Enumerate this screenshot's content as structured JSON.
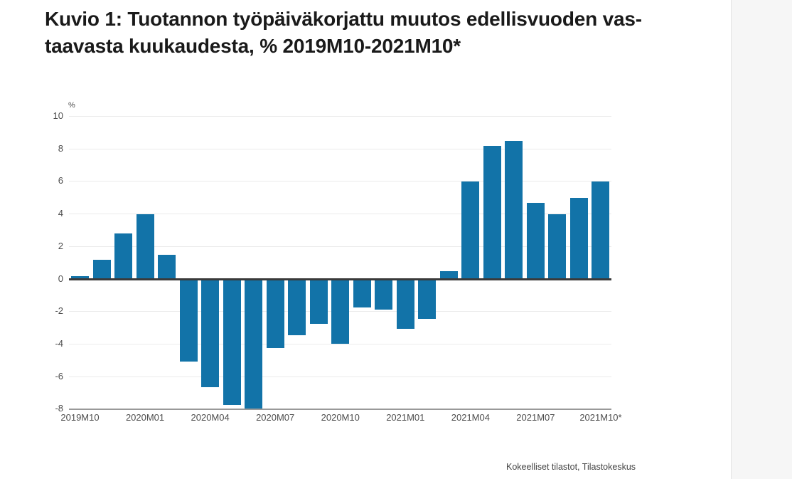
{
  "title": {
    "line1": "Kuvio 1: Tuotannon työpäiväkorjattu muutos edellisvuoden vas-",
    "line2": "taavasta kuukaudesta, % 2019M10-2021M10*"
  },
  "footer": {
    "source_label": "Kokeelliset tilastot, Tilastokeskus"
  },
  "chart_data": {
    "type": "bar",
    "title": "Kuvio 1: Tuotannon työpäiväkorjattu muutos edellisvuoden vastaavasta kuukaudesta, % 2019M10-2021M10*",
    "ylabel": "%",
    "xlabel": "",
    "ylim": [
      -8,
      10
    ],
    "ytick_step": 2,
    "yticks": [
      10,
      8,
      6,
      4,
      2,
      0,
      -2,
      -4,
      -6,
      -8
    ],
    "grid": "horizontal",
    "legend_position": "none",
    "bar_color": "#1273a8",
    "categories": [
      "2019M10",
      "2019M11",
      "2019M12",
      "2020M01",
      "2020M02",
      "2020M03",
      "2020M04",
      "2020M05",
      "2020M06",
      "2020M07",
      "2020M08",
      "2020M09",
      "2020M10",
      "2020M11",
      "2020M12",
      "2021M01",
      "2021M02",
      "2021M03",
      "2021M04",
      "2021M05",
      "2021M06",
      "2021M07",
      "2021M08",
      "2021M09",
      "2021M10"
    ],
    "values": [
      0.2,
      1.2,
      2.8,
      4.0,
      1.5,
      -5.0,
      -6.6,
      -7.7,
      -7.9,
      -4.2,
      -3.4,
      -2.7,
      -3.9,
      -1.7,
      -1.8,
      -3.0,
      -2.4,
      0.5,
      6.0,
      8.2,
      8.5,
      4.7,
      4.0,
      5.0,
      6.0
    ],
    "xtick_labels": [
      "2019M10",
      "2020M01",
      "2020M04",
      "2020M07",
      "2020M10",
      "2021M01",
      "2021M04",
      "2021M07",
      "2021M10*"
    ],
    "xtick_every": 3
  }
}
